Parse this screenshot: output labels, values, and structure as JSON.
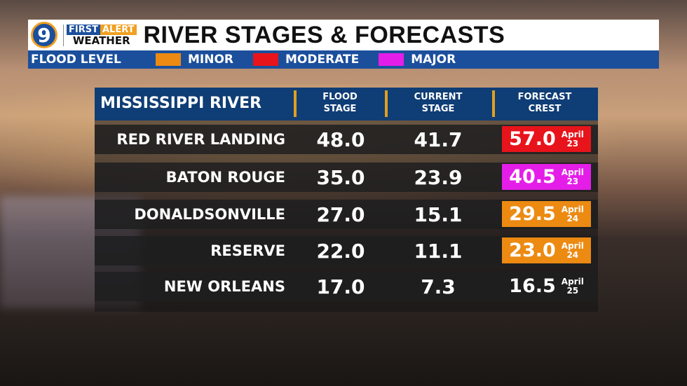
{
  "header": {
    "logo_number": "9",
    "brand_first": "FIRST",
    "brand_alert": "ALERT",
    "brand_weather": "WEATHER",
    "title": "RIVER STAGES & FORECASTS"
  },
  "legend": {
    "label": "FLOOD LEVEL",
    "items": [
      {
        "label": "MINOR",
        "color": "#ec8a12"
      },
      {
        "label": "MODERATE",
        "color": "#e8141b"
      },
      {
        "label": "MAJOR",
        "color": "#e41ee8"
      }
    ]
  },
  "table": {
    "river": "MISSISSIPPI RIVER",
    "columns": [
      "FLOOD STAGE",
      "CURRENT STAGE",
      "FORECAST CREST"
    ],
    "rows": [
      {
        "name": "RED RIVER LANDING",
        "flood": "48.0",
        "current": "41.7",
        "crest": "57.0",
        "month": "April",
        "day": "23",
        "level": "moderate",
        "color": "#e8141b"
      },
      {
        "name": "BATON ROUGE",
        "flood": "35.0",
        "current": "23.9",
        "crest": "40.5",
        "month": "April",
        "day": "23",
        "level": "major",
        "color": "#e41ee8"
      },
      {
        "name": "DONALDSONVILLE",
        "flood": "27.0",
        "current": "15.1",
        "crest": "29.5",
        "month": "April",
        "day": "24",
        "level": "minor",
        "color": "#ec8a12"
      },
      {
        "name": "RESERVE",
        "flood": "22.0",
        "current": "11.1",
        "crest": "23.0",
        "month": "April",
        "day": "24",
        "level": "minor",
        "color": "#ec8a12"
      },
      {
        "name": "NEW ORLEANS",
        "flood": "17.0",
        "current": "7.3",
        "crest": "16.5",
        "month": "April",
        "day": "25",
        "level": "none",
        "color": ""
      }
    ]
  }
}
